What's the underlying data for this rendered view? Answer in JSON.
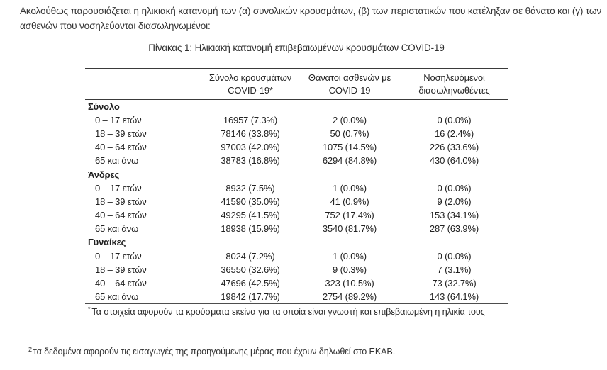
{
  "intro": {
    "line1": "Ακολούθως παρουσιάζεται η ηλικιακή κατανομή των (α) συνολικών κρουσμάτων, (β) των περιστατικών που κατέληξαν σε θάνατο και (γ) των",
    "line2": "ασθενών που νοσηλεύονται διασωληνωμένοι:"
  },
  "table": {
    "title": "Πίνακας 1: Ηλικιακή κατανομή επιβεβαιωμένων κρουσμάτων COVID-19",
    "columns": [
      {
        "line1": "Σύνολο κρουσμάτων",
        "line2": "COVID-19*"
      },
      {
        "line1": "Θάνατοι ασθενών με",
        "line2": "COVID-19"
      },
      {
        "line1": "Νοσηλευόμενοι",
        "line2": "διασωληνωθέντες"
      }
    ],
    "groups": [
      {
        "label": "Σύνολο",
        "rows": [
          {
            "age": "0 – 17 ετών",
            "cases": "16957 (7.3%)",
            "deaths": "2 (0.0%)",
            "intubated": "0 (0.0%)"
          },
          {
            "age": "18 – 39 ετών",
            "cases": "78146 (33.8%)",
            "deaths": "50 (0.7%)",
            "intubated": "16 (2.4%)"
          },
          {
            "age": "40 – 64 ετών",
            "cases": "97003 (42.0%)",
            "deaths": "1075 (14.5%)",
            "intubated": "226 (33.6%)"
          },
          {
            "age": "65 και άνω",
            "cases": "38783 (16.8%)",
            "deaths": "6294 (84.8%)",
            "intubated": "430 (64.0%)"
          }
        ]
      },
      {
        "label": "Άνδρες",
        "rows": [
          {
            "age": "0 – 17 ετών",
            "cases": "8932 (7.5%)",
            "deaths": "1 (0.0%)",
            "intubated": "0 (0.0%)"
          },
          {
            "age": "18 – 39 ετών",
            "cases": "41590 (35.0%)",
            "deaths": "41 (0.9%)",
            "intubated": "9 (2.0%)"
          },
          {
            "age": "40 – 64 ετών",
            "cases": "49295 (41.5%)",
            "deaths": "752 (17.4%)",
            "intubated": "153 (34.1%)"
          },
          {
            "age": "65 και άνω",
            "cases": "18938 (15.9%)",
            "deaths": "3540 (81.7%)",
            "intubated": "287 (63.9%)"
          }
        ]
      },
      {
        "label": "Γυναίκες",
        "rows": [
          {
            "age": "0 – 17 ετών",
            "cases": "8024 (7.2%)",
            "deaths": "1 (0.0%)",
            "intubated": "0 (0.0%)"
          },
          {
            "age": "18 – 39 ετών",
            "cases": "36550 (32.6%)",
            "deaths": "9 (0.3%)",
            "intubated": "7 (3.1%)"
          },
          {
            "age": "40 – 64 ετών",
            "cases": "47696 (42.5%)",
            "deaths": "323 (10.5%)",
            "intubated": "73 (32.7%)"
          },
          {
            "age": "65 και άνω",
            "cases": "19842 (17.7%)",
            "deaths": "2754 (89.2%)",
            "intubated": "143 (64.1%)"
          }
        ]
      }
    ],
    "footnote": {
      "marker": "*",
      "text": "Τα στοιχεία αφορούν τα κρούσματα εκείνα για τα οποία είναι γνωστή και επιβεβαιωμένη η ηλικία τους"
    }
  },
  "page_footnote": {
    "marker": "2",
    "text": "τα δεδομένα αφορούν τις εισαγωγές της προηγούμενης μέρας που έχουν δηλωθεί στο ΕΚΑΒ."
  }
}
